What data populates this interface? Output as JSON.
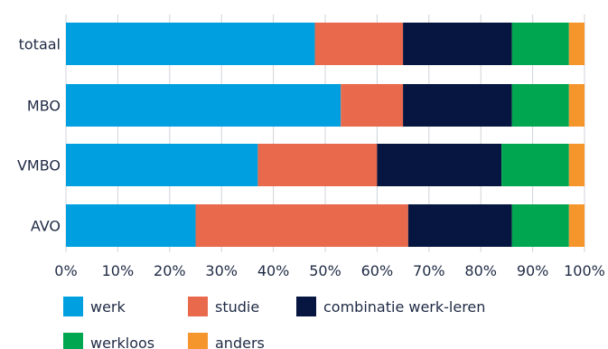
{
  "chart_data": {
    "type": "bar",
    "orientation": "horizontal",
    "stacked": true,
    "categories": [
      "totaal",
      "MBO",
      "VMBO",
      "AVO"
    ],
    "series": [
      {
        "name": "werk",
        "color": "#00a0e0",
        "values": [
          48,
          53,
          37,
          25
        ]
      },
      {
        "name": "studie",
        "color": "#e8694c",
        "values": [
          17,
          12,
          23,
          41
        ]
      },
      {
        "name": "combinatie werk-leren",
        "color": "#061640",
        "values": [
          21,
          21,
          24,
          20
        ]
      },
      {
        "name": "werkloos",
        "color": "#00a650",
        "values": [
          11,
          11,
          13,
          11
        ]
      },
      {
        "name": "anders",
        "color": "#f5962d",
        "values": [
          3,
          3,
          3,
          3
        ]
      }
    ],
    "x_ticks": [
      "0%",
      "10%",
      "20%",
      "30%",
      "40%",
      "50%",
      "60%",
      "70%",
      "80%",
      "90%",
      "100%"
    ],
    "xlim": [
      0,
      100
    ],
    "grid": "vertical",
    "legend_placement": "bottom"
  }
}
